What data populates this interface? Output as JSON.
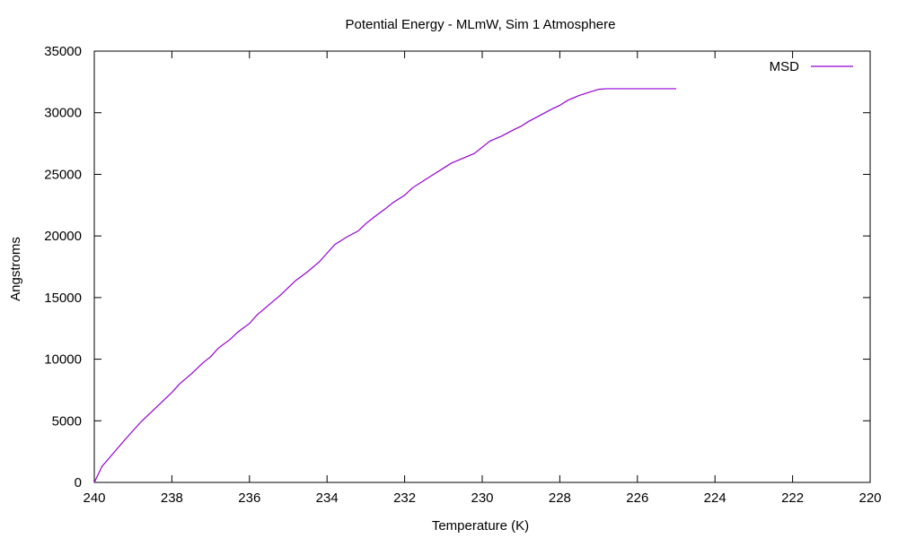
{
  "chart_data": {
    "type": "line",
    "title": "Potential Energy - MLmW, Sim 1 Atmosphere",
    "xlabel": "Temperature (K)",
    "ylabel": "Angstroms",
    "xlim": [
      240,
      220
    ],
    "ylim": [
      0,
      35000
    ],
    "x_reversed": true,
    "xticks": [
      240,
      238,
      236,
      234,
      232,
      230,
      228,
      226,
      224,
      222,
      220
    ],
    "yticks": [
      0,
      5000,
      10000,
      15000,
      20000,
      25000,
      30000,
      35000
    ],
    "grid": false,
    "legend_position": "top-right",
    "series": [
      {
        "name": "MSD",
        "color": "#9400d3",
        "x": [
          240,
          239.8,
          239.5,
          239.2,
          239.0,
          238.8,
          238.5,
          238.2,
          238.0,
          237.8,
          237.5,
          237.2,
          237.0,
          236.8,
          236.5,
          236.3,
          236.0,
          235.8,
          235.5,
          235.2,
          235.0,
          234.8,
          234.5,
          234.2,
          234.0,
          233.8,
          233.5,
          233.2,
          233.0,
          232.8,
          232.5,
          232.3,
          232.0,
          231.8,
          231.5,
          231.2,
          231.0,
          230.8,
          230.5,
          230.2,
          230.0,
          229.8,
          229.5,
          229.2,
          229.0,
          228.8,
          228.5,
          228.2,
          228.0,
          227.8,
          227.5,
          227.2,
          227.0,
          226.8,
          226.5,
          226.3,
          226.2,
          226.0,
          225.5,
          225.0
        ],
        "y": [
          0,
          1300,
          2400,
          3500,
          4200,
          4900,
          5800,
          6700,
          7300,
          8000,
          8800,
          9700,
          10200,
          10900,
          11600,
          12200,
          12900,
          13600,
          14400,
          15200,
          15800,
          16400,
          17100,
          17900,
          18600,
          19300,
          19900,
          20400,
          21000,
          21500,
          22200,
          22700,
          23300,
          23900,
          24500,
          25100,
          25500,
          25900,
          26300,
          26700,
          27200,
          27700,
          28100,
          28600,
          28900,
          29300,
          29800,
          30300,
          30600,
          31000,
          31400,
          31700,
          31900,
          31950,
          31950,
          31950,
          31950,
          31950,
          31950,
          31950
        ]
      }
    ]
  }
}
